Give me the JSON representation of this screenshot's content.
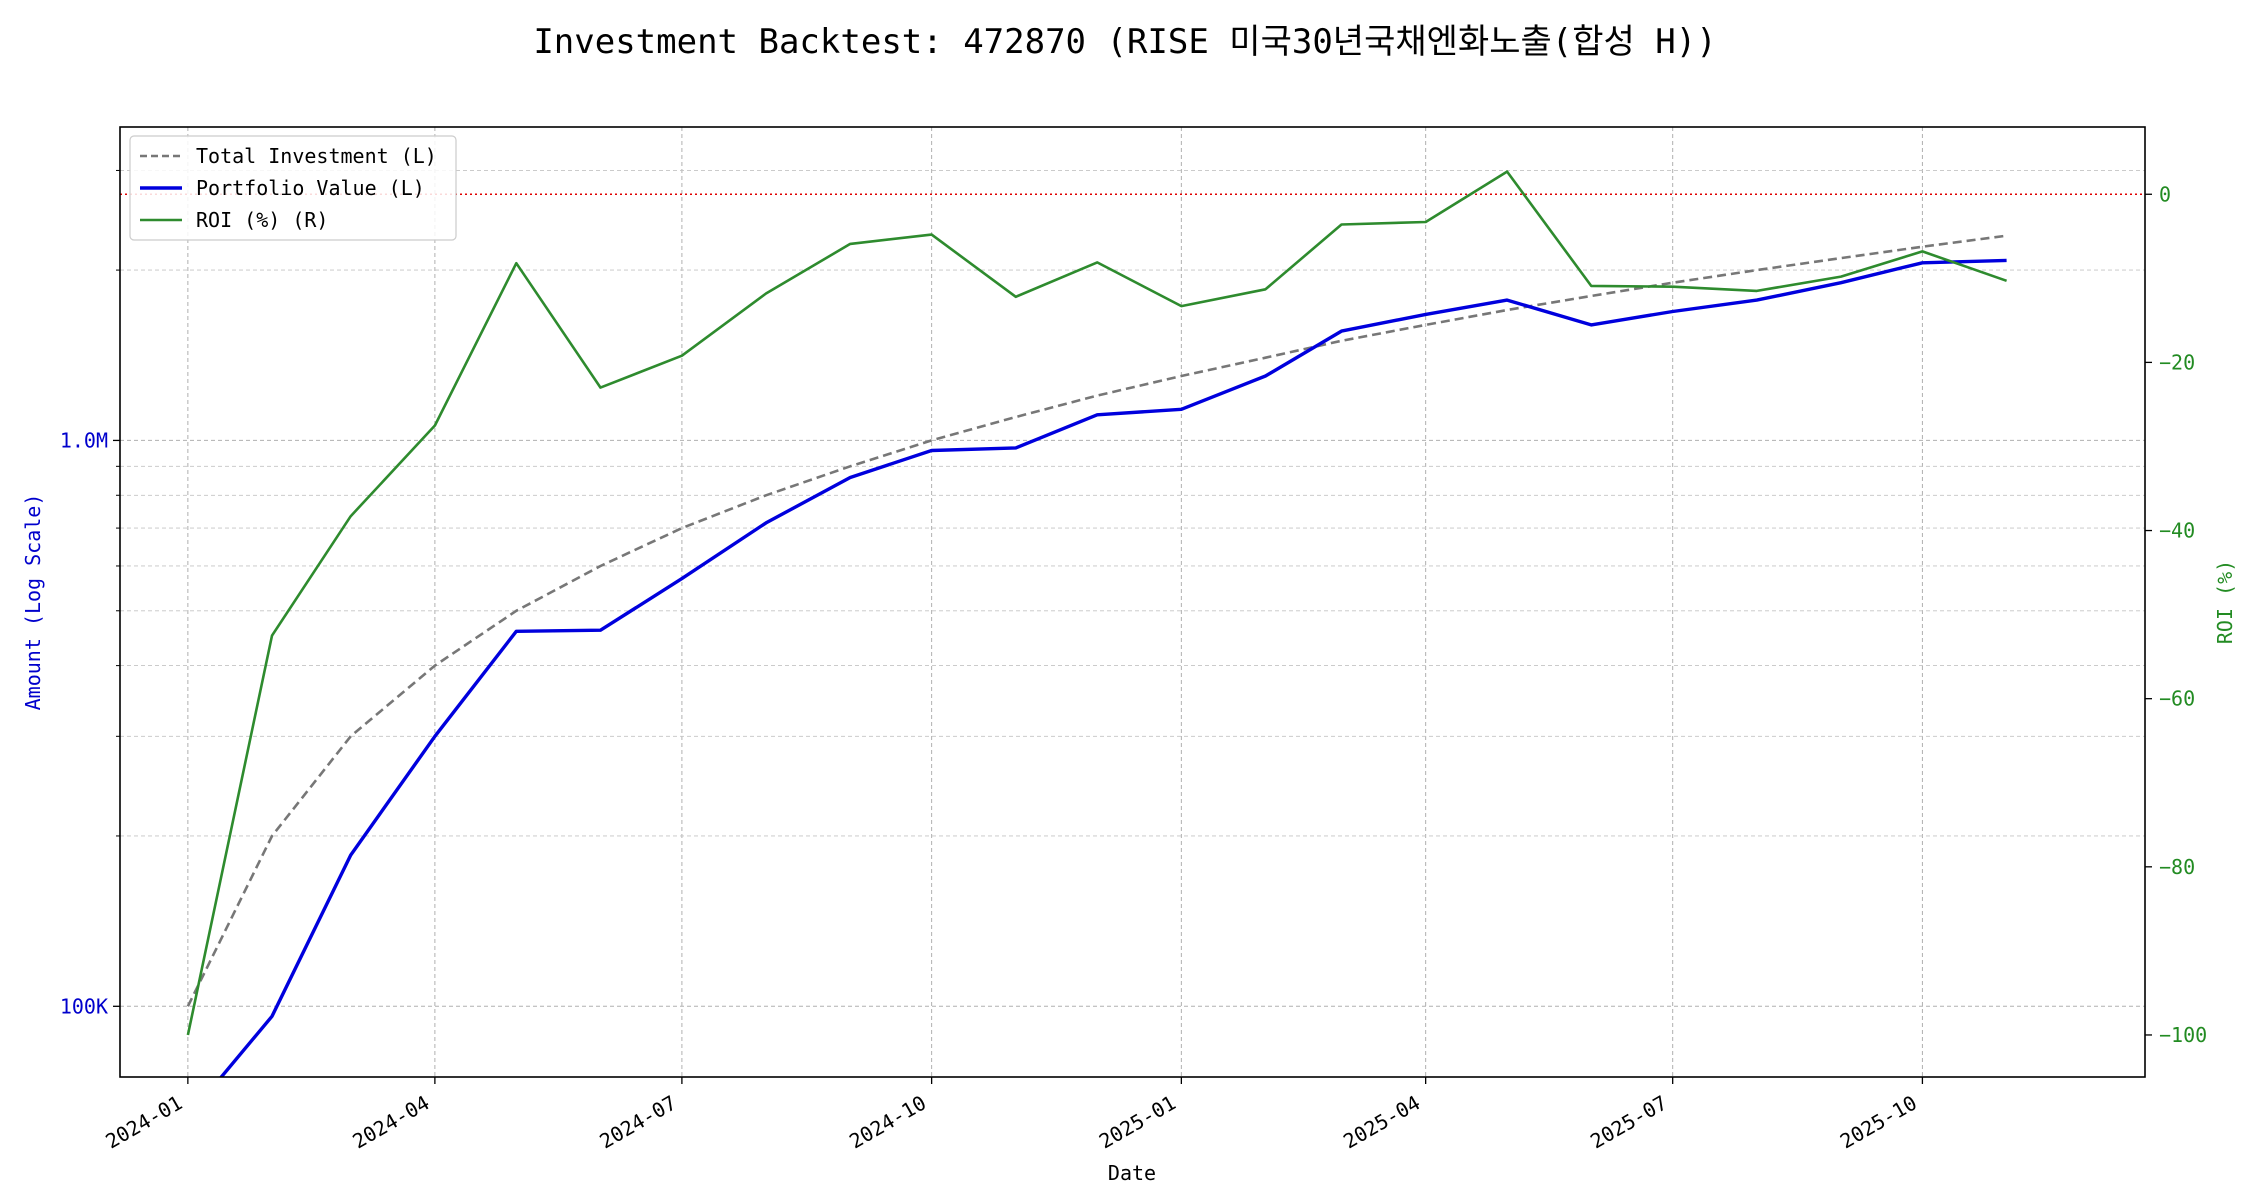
{
  "chart_data": {
    "type": "line",
    "title": "Investment Backtest: 472870 (RISE 미국30년국채엔화노출(합성 H))",
    "xlabel": "Date",
    "ylabel_left": "Amount (Log Scale)",
    "ylabel_right": "ROI (%)",
    "left_scale": "log",
    "left_ylim": [
      75000,
      3580000
    ],
    "right_ylim": [
      -105,
      8
    ],
    "xlim": [
      "2023-12-07",
      "2025-12-22"
    ],
    "grid": true,
    "legend_position": "upper-left",
    "x_ticks": [
      "2024-01-01",
      "2024-04-01",
      "2024-07-01",
      "2024-10-01",
      "2025-01-01",
      "2025-04-01",
      "2025-07-01",
      "2025-10-01"
    ],
    "x_tick_labels": [
      "2024-01",
      "2024-04",
      "2024-07",
      "2024-10",
      "2025-01",
      "2025-04",
      "2025-07",
      "2025-10"
    ],
    "left_major_ticks": [
      100000,
      1000000
    ],
    "left_major_tick_labels": [
      "100K",
      "1.0M"
    ],
    "left_minor_ticks": [
      200000,
      300000,
      400000,
      500000,
      600000,
      700000,
      800000,
      900000,
      2000000,
      3000000
    ],
    "right_ticks": [
      0,
      -20,
      -40,
      -60,
      -80,
      -100
    ],
    "right_tick_labels": [
      "0",
      "−20",
      "−40",
      "−60",
      "−80",
      "−100"
    ],
    "reference_line": {
      "axis": "right",
      "value": 0,
      "color": "#e00000",
      "style": "dotted"
    },
    "x": [
      "2024-01-01",
      "2024-02-01",
      "2024-03-01",
      "2024-04-01",
      "2024-05-01",
      "2024-06-01",
      "2024-07-01",
      "2024-08-01",
      "2024-09-01",
      "2024-10-01",
      "2024-11-01",
      "2024-12-01",
      "2025-01-01",
      "2025-02-01",
      "2025-03-01",
      "2025-04-01",
      "2025-05-01",
      "2025-06-01",
      "2025-07-01",
      "2025-08-01",
      "2025-09-01",
      "2025-10-01",
      "2025-11-01"
    ],
    "series": [
      {
        "name": "Total Investment (L)",
        "axis": "left",
        "color": "#777777",
        "style": "dashed",
        "values": [
          100000,
          200000,
          300000,
          400000,
          500000,
          600000,
          700000,
          800000,
          900000,
          1000000,
          1100000,
          1200000,
          1300000,
          1400000,
          1500000,
          1600000,
          1700000,
          1800000,
          1900000,
          2000000,
          2100000,
          2200000,
          2300000
        ]
      },
      {
        "name": "Portfolio Value (L)",
        "axis": "left",
        "color": "#0000dd",
        "style": "solid",
        "values": [
          0,
          96000,
          185000,
          300000,
          460000,
          462000,
          570000,
          715000,
          860000,
          960000,
          970000,
          1110000,
          1135000,
          1300000,
          1560000,
          1670000,
          1770000,
          1600000,
          1690000,
          1770000,
          1900000,
          2060000,
          2080000
        ]
      },
      {
        "name": "ROI (%) (R)",
        "axis": "right",
        "color": "#2e8b2e",
        "style": "solid",
        "values": [
          -100,
          -52.5,
          -38.3,
          -27.5,
          -8.2,
          -23.0,
          -19.2,
          -11.8,
          -5.9,
          -4.8,
          -12.2,
          -8.1,
          -13.3,
          -11.3,
          -3.6,
          -3.3,
          2.7,
          -10.9,
          -11.0,
          -11.5,
          -9.8,
          -6.8,
          -10.3
        ]
      }
    ]
  }
}
